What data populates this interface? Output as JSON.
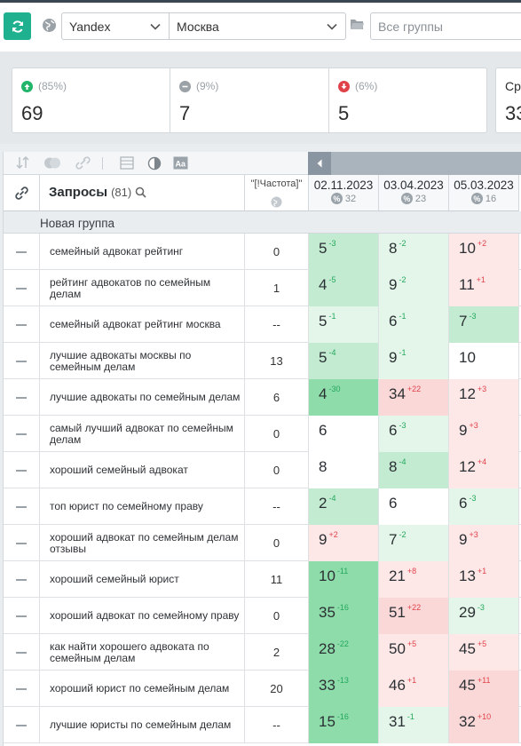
{
  "toolbar": {
    "engine": "Yandex",
    "region": "Москва",
    "groups_placeholder": "Все группы"
  },
  "stats": [
    {
      "pct": "(85%)",
      "value": "69",
      "trend": "up"
    },
    {
      "pct": "(9%)",
      "value": "7",
      "trend": "neutral"
    },
    {
      "pct": "(6%)",
      "value": "5",
      "trend": "down"
    },
    {
      "label": "Ср",
      "value": "33"
    }
  ],
  "table": {
    "query_header": "Запросы",
    "query_count": "(81)",
    "freq_header": "\"[!Частота]\"",
    "dates": [
      {
        "date": "02.11.2023",
        "visibility": "32"
      },
      {
        "date": "03.04.2023",
        "visibility": "23"
      },
      {
        "date": "05.03.2023",
        "visibility": "16"
      }
    ],
    "group_name": "Новая группа",
    "rows": [
      {
        "query": "семейный адвокат рейтинг",
        "freq": "0",
        "pos": [
          {
            "v": "5",
            "d": "-3",
            "dir": "up",
            "bg": "g2"
          },
          {
            "v": "8",
            "d": "-2",
            "dir": "up",
            "bg": "g1"
          },
          {
            "v": "10",
            "d": "+2",
            "dir": "down",
            "bg": "r1"
          }
        ]
      },
      {
        "query": "рейтинг адвокатов по семейным делам",
        "freq": "1",
        "pos": [
          {
            "v": "4",
            "d": "-5",
            "dir": "up",
            "bg": "g2"
          },
          {
            "v": "9",
            "d": "-2",
            "dir": "up",
            "bg": "g1"
          },
          {
            "v": "11",
            "d": "+1",
            "dir": "down",
            "bg": "r1"
          }
        ]
      },
      {
        "query": "семейный адвокат рейтинг москва",
        "freq": "--",
        "pos": [
          {
            "v": "5",
            "d": "-1",
            "dir": "up",
            "bg": "g1"
          },
          {
            "v": "6",
            "d": "-1",
            "dir": "up",
            "bg": "g1"
          },
          {
            "v": "7",
            "d": "-3",
            "dir": "up",
            "bg": "g2"
          }
        ]
      },
      {
        "query": "лучшие адвокаты москвы по семейным делам",
        "freq": "13",
        "pos": [
          {
            "v": "5",
            "d": "-4",
            "dir": "up",
            "bg": "g2"
          },
          {
            "v": "9",
            "d": "-1",
            "dir": "up",
            "bg": "g1"
          },
          {
            "v": "10",
            "d": "",
            "dir": "",
            "bg": "w"
          }
        ]
      },
      {
        "query": "лучшие адвокаты по семейным делам",
        "freq": "6",
        "pos": [
          {
            "v": "4",
            "d": "-30",
            "dir": "up",
            "bg": "g3"
          },
          {
            "v": "34",
            "d": "+22",
            "dir": "down",
            "bg": "r2"
          },
          {
            "v": "12",
            "d": "+3",
            "dir": "down",
            "bg": "r1"
          }
        ]
      },
      {
        "query": "самый лучший адвокат по семейным делам",
        "freq": "0",
        "pos": [
          {
            "v": "6",
            "d": "",
            "dir": "",
            "bg": "w"
          },
          {
            "v": "6",
            "d": "-3",
            "dir": "up",
            "bg": "g1"
          },
          {
            "v": "9",
            "d": "+3",
            "dir": "down",
            "bg": "r1"
          }
        ]
      },
      {
        "query": "хороший семейный адвокат",
        "freq": "0",
        "pos": [
          {
            "v": "8",
            "d": "",
            "dir": "",
            "bg": "w"
          },
          {
            "v": "8",
            "d": "-4",
            "dir": "up",
            "bg": "g2"
          },
          {
            "v": "12",
            "d": "+4",
            "dir": "down",
            "bg": "r1"
          }
        ]
      },
      {
        "query": "топ юрист по семейному праву",
        "freq": "--",
        "pos": [
          {
            "v": "2",
            "d": "-4",
            "dir": "up",
            "bg": "g2"
          },
          {
            "v": "6",
            "d": "",
            "dir": "",
            "bg": "w"
          },
          {
            "v": "6",
            "d": "-3",
            "dir": "up",
            "bg": "g1"
          }
        ]
      },
      {
        "query": "хороший адвокат по семейным делам отзывы",
        "freq": "0",
        "pos": [
          {
            "v": "9",
            "d": "+2",
            "dir": "down",
            "bg": "r1"
          },
          {
            "v": "7",
            "d": "-2",
            "dir": "up",
            "bg": "g1"
          },
          {
            "v": "9",
            "d": "+3",
            "dir": "down",
            "bg": "r1"
          }
        ]
      },
      {
        "query": "хороший семейный юрист",
        "freq": "11",
        "pos": [
          {
            "v": "10",
            "d": "-11",
            "dir": "up",
            "bg": "g3"
          },
          {
            "v": "21",
            "d": "+8",
            "dir": "down",
            "bg": "r1"
          },
          {
            "v": "13",
            "d": "+1",
            "dir": "down",
            "bg": "r1"
          }
        ]
      },
      {
        "query": "хороший адвокат по семейному праву",
        "freq": "0",
        "pos": [
          {
            "v": "35",
            "d": "-16",
            "dir": "up",
            "bg": "g3"
          },
          {
            "v": "51",
            "d": "+22",
            "dir": "down",
            "bg": "r2"
          },
          {
            "v": "29",
            "d": "-3",
            "dir": "up",
            "bg": "g1"
          }
        ]
      },
      {
        "query": "как найти хорошего адвоката по семейным делам",
        "freq": "2",
        "pos": [
          {
            "v": "28",
            "d": "-22",
            "dir": "up",
            "bg": "g3"
          },
          {
            "v": "50",
            "d": "+5",
            "dir": "down",
            "bg": "r1"
          },
          {
            "v": "45",
            "d": "+5",
            "dir": "down",
            "bg": "r1"
          }
        ]
      },
      {
        "query": "хороший юрист по семейным делам",
        "freq": "20",
        "pos": [
          {
            "v": "33",
            "d": "-13",
            "dir": "up",
            "bg": "g3"
          },
          {
            "v": "46",
            "d": "+1",
            "dir": "down",
            "bg": "r1"
          },
          {
            "v": "45",
            "d": "+11",
            "dir": "down",
            "bg": "r2"
          }
        ]
      },
      {
        "query": "лучшие юристы по семейным делам",
        "freq": "--",
        "pos": [
          {
            "v": "15",
            "d": "-16",
            "dir": "up",
            "bg": "g3"
          },
          {
            "v": "31",
            "d": "-1",
            "dir": "up",
            "bg": "g1"
          },
          {
            "v": "32",
            "d": "+10",
            "dir": "down",
            "bg": "r2"
          }
        ]
      }
    ]
  }
}
